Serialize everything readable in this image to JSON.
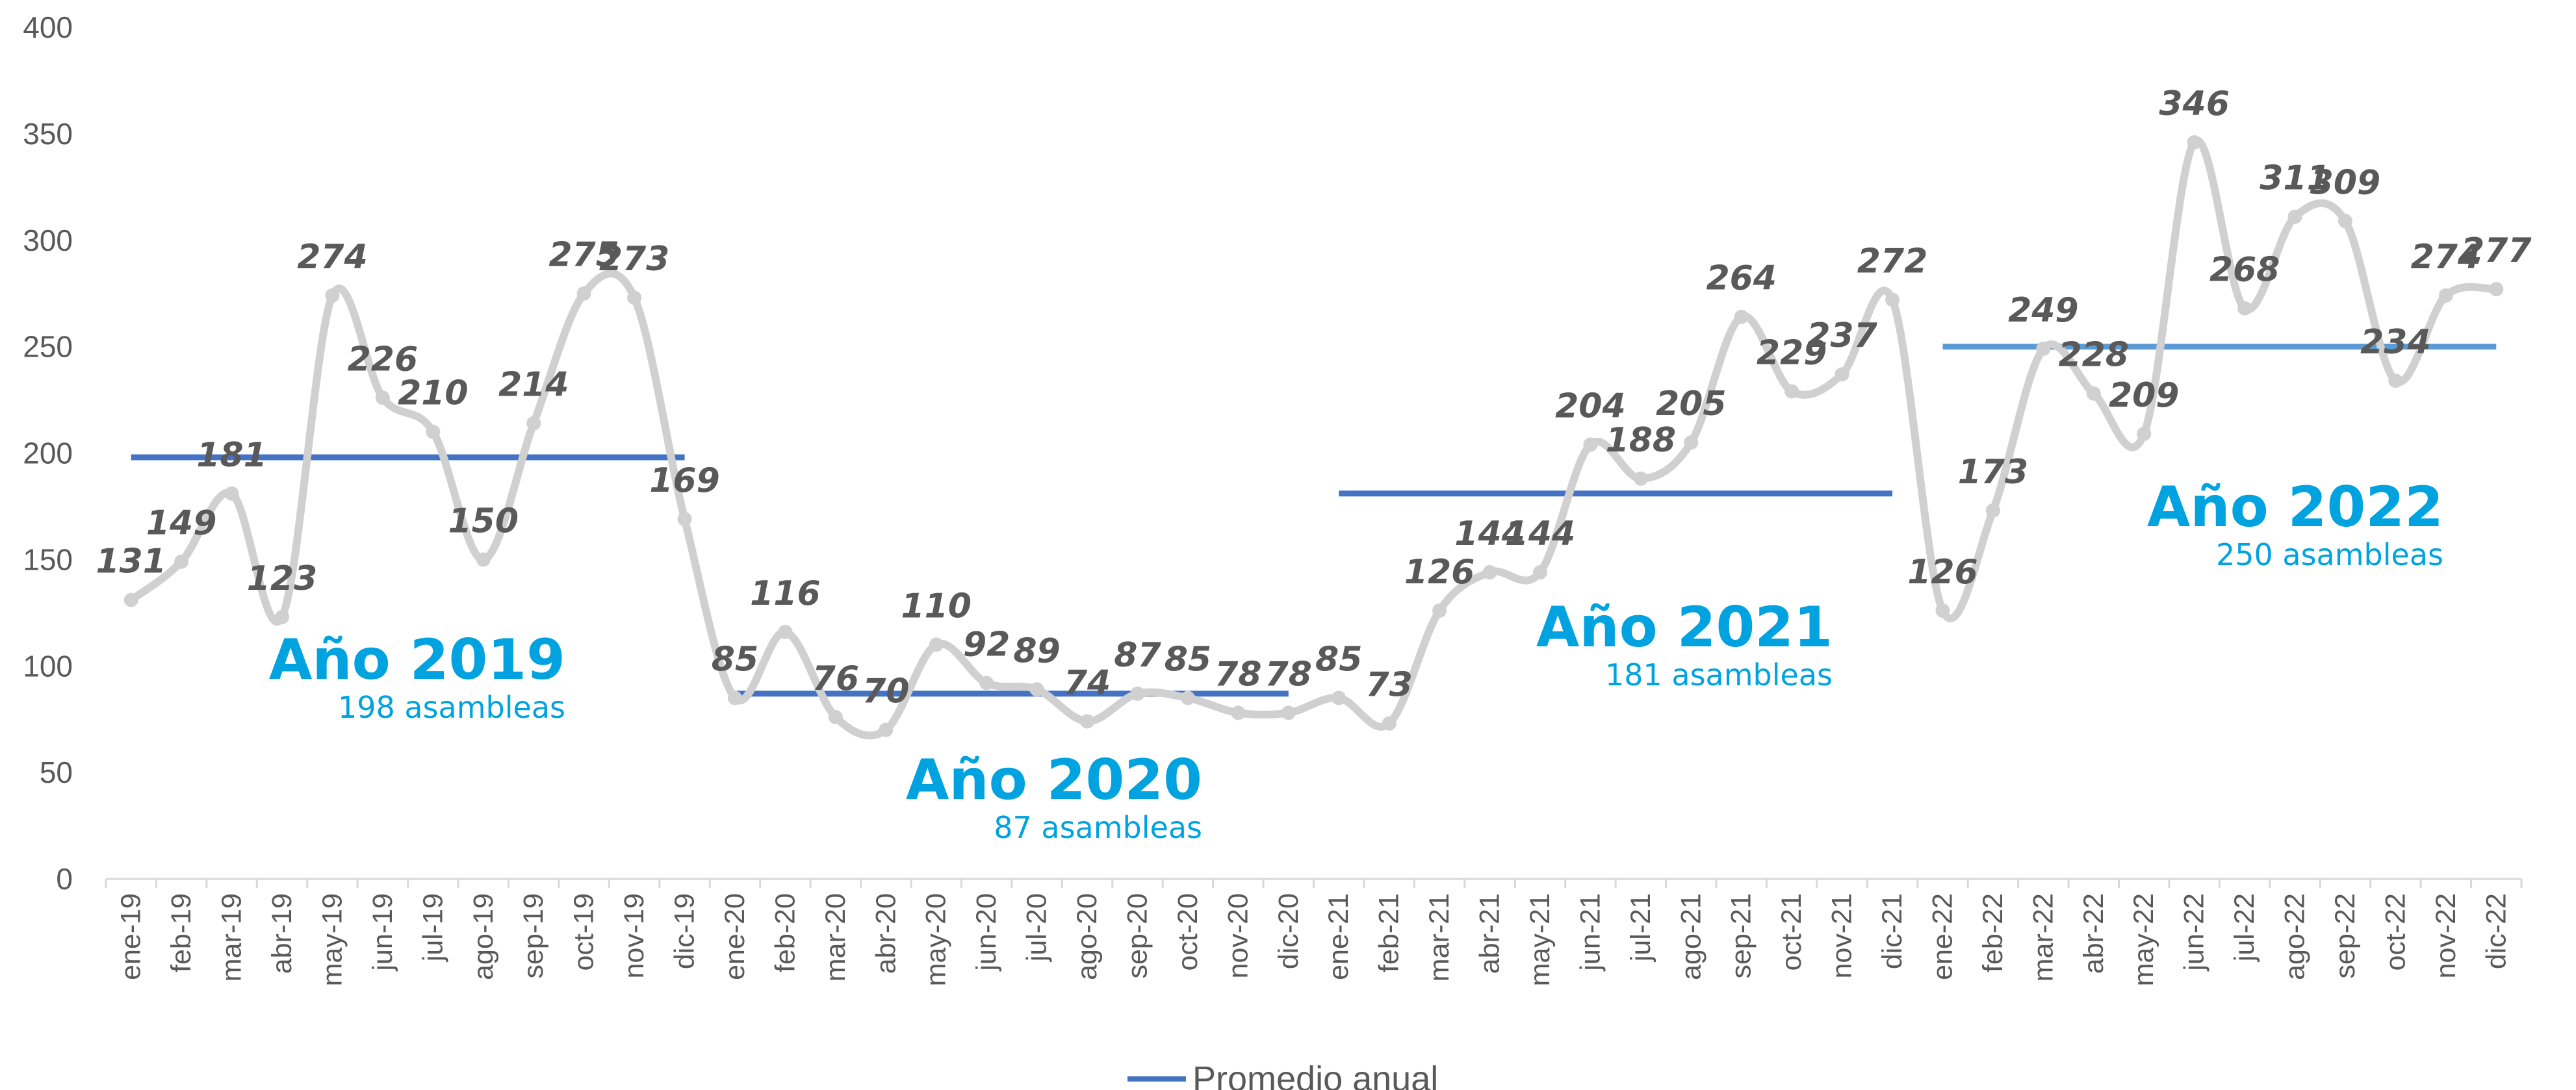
{
  "chart_data": {
    "type": "line",
    "title": "",
    "xlabel": "",
    "ylabel": "",
    "ylim": [
      0,
      400
    ],
    "yticks": [
      0,
      50,
      100,
      150,
      200,
      250,
      300,
      350,
      400
    ],
    "grid": false,
    "categories": [
      "ene-19",
      "feb-19",
      "mar-19",
      "abr-19",
      "may-19",
      "jun-19",
      "jul-19",
      "ago-19",
      "sep-19",
      "oct-19",
      "nov-19",
      "dic-19",
      "ene-20",
      "feb-20",
      "mar-20",
      "abr-20",
      "may-20",
      "jun-20",
      "jul-20",
      "ago-20",
      "sep-20",
      "oct-20",
      "nov-20",
      "dic-20",
      "ene-21",
      "feb-21",
      "mar-21",
      "abr-21",
      "may-21",
      "jun-21",
      "jul-21",
      "ago-21",
      "sep-21",
      "oct-21",
      "nov-21",
      "dic-21",
      "ene-22",
      "feb-22",
      "mar-22",
      "abr-22",
      "may-22",
      "jun-22",
      "jul-22",
      "ago-22",
      "sep-22",
      "oct-22",
      "nov-22",
      "dic-22"
    ],
    "series": [
      {
        "values": [
          131,
          149,
          181,
          123,
          274,
          226,
          210,
          150,
          214,
          275,
          273,
          169,
          85,
          116,
          76,
          70,
          110,
          92,
          89,
          74,
          87,
          85,
          78,
          78,
          85,
          73,
          126,
          144,
          144,
          204,
          188,
          205,
          264,
          229,
          237,
          272,
          126,
          173,
          249,
          228,
          209,
          346,
          268,
          311,
          309,
          234,
          274,
          277
        ],
        "color": "#D0D0D0",
        "smooth": true
      },
      {
        "name": "Promedio anual",
        "segments": [
          {
            "from": "ene-19",
            "to": "dic-19",
            "value": 198,
            "color": "#4472C4"
          },
          {
            "from": "ene-20",
            "to": "dic-20",
            "value": 87,
            "color": "#4472C4"
          },
          {
            "from": "ene-21",
            "to": "dic-21",
            "value": 181,
            "color": "#4472C4"
          },
          {
            "from": "ene-22",
            "to": "dic-22",
            "value": 250,
            "color": "#5B9BD5"
          }
        ]
      }
    ],
    "annotations": [
      {
        "title": "Año 2019",
        "subtitle": "198 asambleas"
      },
      {
        "title": "Año 2020",
        "subtitle": "87 asambleas"
      },
      {
        "title": "Año 2021",
        "subtitle": "181 asambleas"
      },
      {
        "title": "Año 2022",
        "subtitle": "250 asambleas"
      }
    ],
    "legend": {
      "position": "bottom",
      "label": "Promedio anual",
      "color": "#4472C4"
    },
    "colors": {
      "accent": "#00A3DF",
      "text": "#595959",
      "axis": "#D9D9D9"
    }
  }
}
